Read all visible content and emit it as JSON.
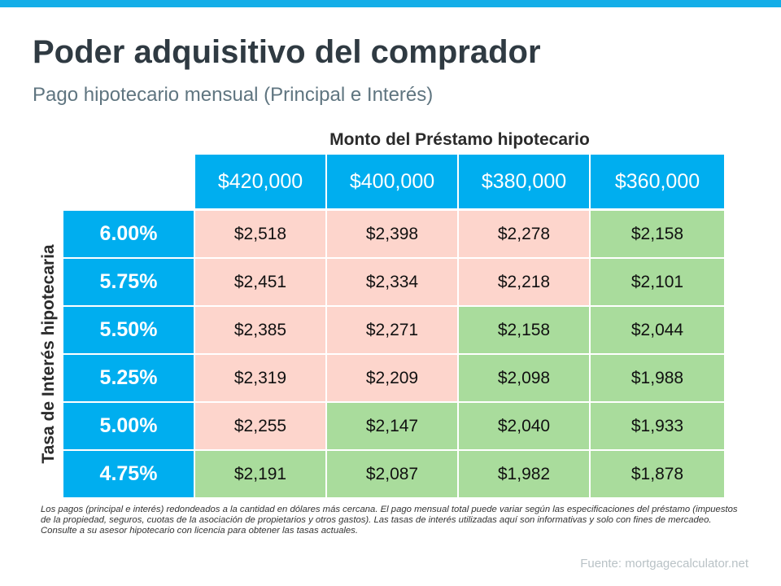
{
  "header": {
    "title": "Poder adquisitivo del comprador",
    "subtitle": "Pago hipotecario mensual (Principal e Interés)"
  },
  "colors": {
    "accent": "#00aeef",
    "above_budget": "#fdd5cc",
    "within_budget": "#a9dc9c"
  },
  "chart_data": {
    "type": "table",
    "column_title": "Monto del Préstamo hipotecario",
    "row_title": "Tasa de Interés hipotecaria",
    "columns": [
      "$420,000",
      "$400,000",
      "$380,000",
      "$360,000"
    ],
    "rows": [
      {
        "rate": "6.00%",
        "values": [
          "$2,518",
          "$2,398",
          "$2,278",
          "$2,158"
        ],
        "colors": [
          "pink",
          "pink",
          "pink",
          "green"
        ]
      },
      {
        "rate": "5.75%",
        "values": [
          "$2,451",
          "$2,334",
          "$2,218",
          "$2,101"
        ],
        "colors": [
          "pink",
          "pink",
          "pink",
          "green"
        ]
      },
      {
        "rate": "5.50%",
        "values": [
          "$2,385",
          "$2,271",
          "$2,158",
          "$2,044"
        ],
        "colors": [
          "pink",
          "pink",
          "green",
          "green"
        ]
      },
      {
        "rate": "5.25%",
        "values": [
          "$2,319",
          "$2,209",
          "$2,098",
          "$1,988"
        ],
        "colors": [
          "pink",
          "pink",
          "green",
          "green"
        ]
      },
      {
        "rate": "5.00%",
        "values": [
          "$2,255",
          "$2,147",
          "$2,040",
          "$1,933"
        ],
        "colors": [
          "pink",
          "green",
          "green",
          "green"
        ]
      },
      {
        "rate": "4.75%",
        "values": [
          "$2,191",
          "$2,087",
          "$1,982",
          "$1,878"
        ],
        "colors": [
          "green",
          "green",
          "green",
          "green"
        ]
      }
    ]
  },
  "footer": {
    "note": "Los pagos (principal e interés) redondeados a la cantidad en dólares más cercana. El pago mensual total puede variar según las especificaciones del préstamo (impuestos de la propiedad, seguros, cuotas de la asociación de propietarios y otros gastos). Las tasas de interés utilizadas aquí son informativas y solo con fines de mercadeo. Consulte a su asesor hipotecario con licencia para obtener las tasas actuales.",
    "source": "Fuente:  mortgagecalculator.net"
  }
}
